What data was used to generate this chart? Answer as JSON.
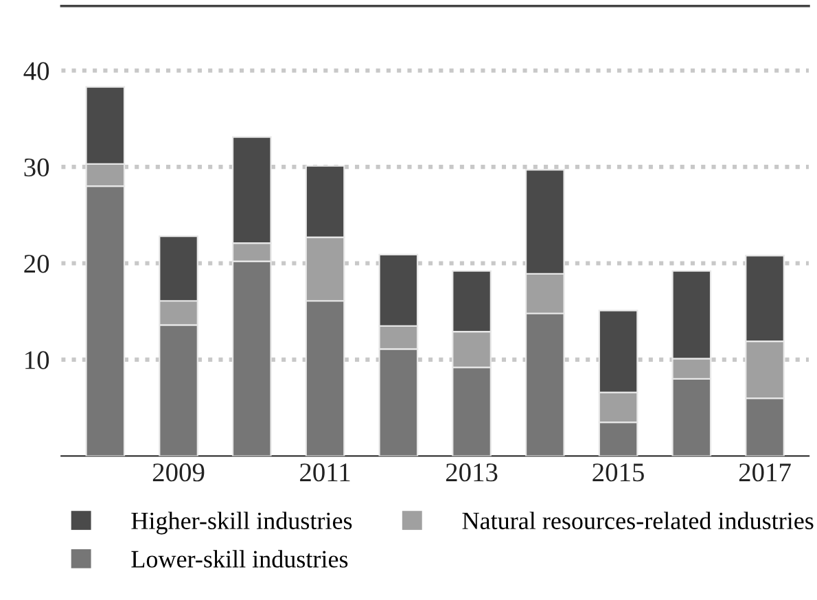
{
  "chart_data": {
    "type": "bar",
    "stacked": true,
    "categories": [
      null,
      "2009",
      null,
      "2011",
      null,
      "2013",
      null,
      "2015",
      null,
      "2017"
    ],
    "series": [
      {
        "name": "Lower-skill industries",
        "color": "#767676",
        "values": [
          28,
          13.6,
          20.2,
          16.1,
          11.1,
          9.2,
          14.8,
          3.5,
          8.0,
          6.0
        ]
      },
      {
        "name": "Natural resources-related industries",
        "color": "#a0a0a0",
        "values": [
          2.3,
          2.5,
          1.9,
          6.6,
          2.4,
          3.7,
          4.1,
          3.1,
          2.1,
          5.9
        ]
      },
      {
        "name": "Higher-skill industries",
        "color": "#4a4a4a",
        "values": [
          8.0,
          6.7,
          11.0,
          7.4,
          7.4,
          6.3,
          10.8,
          8.5,
          9.1,
          8.9
        ]
      }
    ],
    "ylim": [
      0,
      46.7
    ],
    "yticks": [
      10,
      20,
      30,
      40
    ],
    "grid": "y",
    "legend": "bottom"
  }
}
